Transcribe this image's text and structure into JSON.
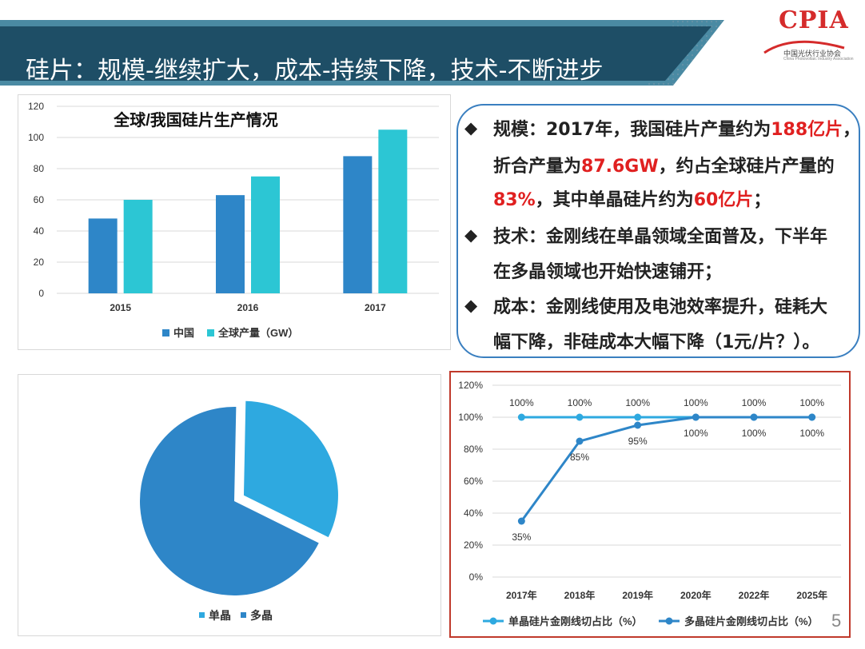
{
  "slide": {
    "title": "硅片：规模-继续扩大，成本-持续下降，技术-不断进步",
    "page_number": "5",
    "colors": {
      "banner": "#1e4e66",
      "banner_edge": "#4a8aa3",
      "accent": "#e02020",
      "frame": "#3a7fc0"
    }
  },
  "logo": {
    "mark": "CPIA",
    "subtitle": "中国光伏行业协会",
    "subtitle_en": "China Photovoltaic Industry Association"
  },
  "textbox": {
    "bullet_glyph": "◆",
    "lines": [
      [
        "规模：2017年，我国硅片产量约为",
        "188亿片",
        "，"
      ],
      [
        "折合产量为",
        "87.6GW",
        "，约占全球硅片产量的"
      ],
      [
        "",
        "83%",
        "，其中单晶硅片约为",
        "60亿片",
        "；"
      ],
      [
        "技术：金刚线在单晶领域全面普及，下半年"
      ],
      [
        "在多晶领域也开始快速铺开；"
      ],
      [
        "成本：金刚线使用及电池效率提升，硅耗大"
      ],
      [
        "幅下降，非硅成本大幅下降（1元/片？）。"
      ]
    ]
  },
  "chart_data": [
    {
      "type": "bar",
      "title": "全球/我国硅片生产情况",
      "categories": [
        "2015",
        "2016",
        "2017"
      ],
      "series": [
        {
          "name": "中国",
          "values": [
            48,
            63,
            88
          ],
          "color": "#2e86c8"
        },
        {
          "name": "全球产量（GW）",
          "values": [
            60,
            75,
            105
          ],
          "color": "#2cc6d4"
        }
      ],
      "ylim": [
        0,
        120
      ],
      "yticks": [
        "0",
        "20",
        "40",
        "60",
        "80",
        "100",
        "120"
      ],
      "grid": true,
      "legend": "bottom"
    },
    {
      "type": "pie",
      "series": [
        {
          "name": "单晶",
          "value": 32,
          "color": "#2ea9e0",
          "exploded": true
        },
        {
          "name": "多晶",
          "value": 68,
          "color": "#2e86c8",
          "exploded": false
        }
      ],
      "legend": "bottom"
    },
    {
      "type": "line",
      "categories": [
        "2017年",
        "2018年",
        "2019年",
        "2020年",
        "2022年",
        "2025年"
      ],
      "series": [
        {
          "name": "单晶硅片金刚线切占比（%）",
          "values": [
            100,
            100,
            100,
            100,
            100,
            100
          ],
          "labels": [
            "100%",
            "100%",
            "100%",
            "100%",
            "100%",
            "100%"
          ],
          "color": "#2ea9e0"
        },
        {
          "name": "多晶硅片金刚线切占比（%）",
          "values": [
            35,
            85,
            95,
            100,
            100,
            100
          ],
          "labels": [
            "35%",
            "85%",
            "95%",
            "100%",
            "100%",
            "100%"
          ],
          "color": "#2e86c8"
        }
      ],
      "ylim": [
        0,
        120
      ],
      "yticks": [
        "0%",
        "20%",
        "40%",
        "60%",
        "80%",
        "100%",
        "120%"
      ],
      "grid": true,
      "legend": "bottom"
    }
  ]
}
